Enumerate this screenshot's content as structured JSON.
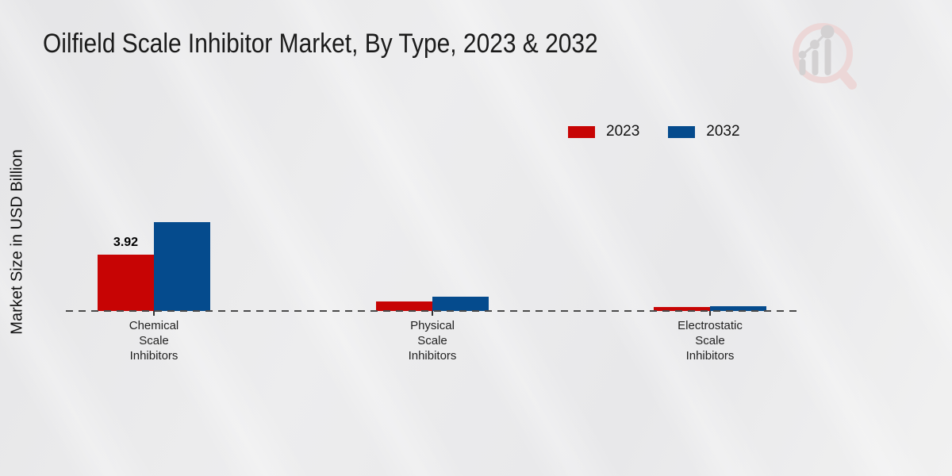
{
  "title": "Oilfield Scale Inhibitor Market, By Type, 2023 & 2032",
  "y_axis_label": "Market Size in USD Billion",
  "legend": {
    "position": "top-right",
    "items": [
      {
        "label": "2023",
        "color": "#c70404"
      },
      {
        "label": "2032",
        "color": "#054b8d"
      }
    ]
  },
  "chart_data": {
    "type": "bar",
    "title": "Oilfield Scale Inhibitor Market, By Type, 2023 & 2032",
    "xlabel": "",
    "ylabel": "Market Size in USD Billion",
    "categories": [
      "Chemical Scale Inhibitors",
      "Physical Scale Inhibitors",
      "Electrostatic Scale Inhibitors"
    ],
    "category_display_lines": [
      [
        "Chemical",
        "Scale",
        "Inhibitors"
      ],
      [
        "Physical",
        "Scale",
        "Inhibitors"
      ],
      [
        "Electrostatic",
        "Scale",
        "Inhibitors"
      ]
    ],
    "series": [
      {
        "name": "2023",
        "color": "#c70404",
        "values": [
          3.92,
          0.65,
          0.25
        ]
      },
      {
        "name": "2032",
        "color": "#054b8d",
        "values": [
          6.2,
          1.0,
          0.35
        ]
      }
    ],
    "value_labels": [
      {
        "series_index": 0,
        "category_index": 0,
        "text": "3.92"
      }
    ],
    "ylim": [
      0,
      7
    ],
    "grid": false,
    "baseline_style": "dashed",
    "legend_position": "top-right"
  },
  "colors": {
    "background": "#eaeaec",
    "footer_bar": "#b00404",
    "axis_line": "#4a4a4a",
    "title_text": "#1b1b1b"
  },
  "logo": {
    "name": "magnifier-bar-chart-watermark-logo"
  }
}
